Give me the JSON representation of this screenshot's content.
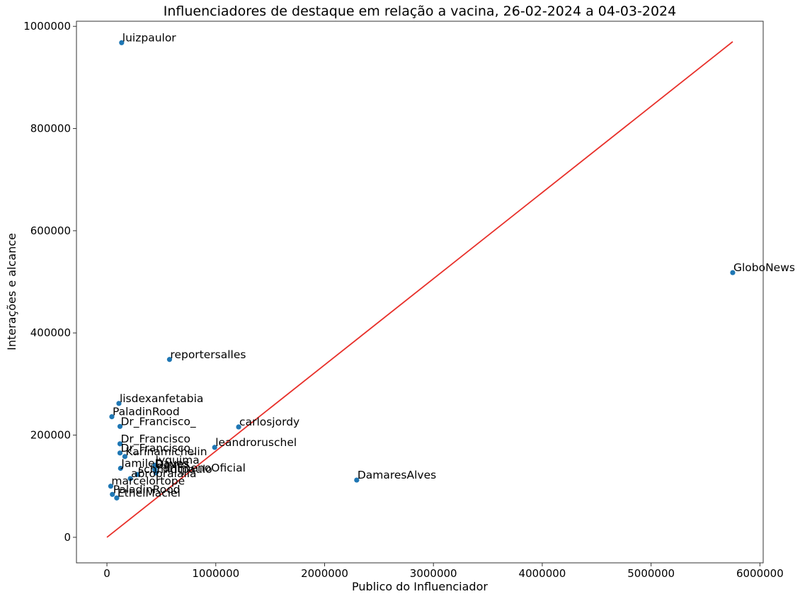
{
  "chart_data": {
    "type": "scatter",
    "title": "Influenciadores de destaque em relação a vacina, 26-02-2024 a 04-03-2024",
    "xlabel": "Publico do Influenciador",
    "ylabel": "Interações e alcance",
    "xlim": [
      -280000,
      6030000
    ],
    "ylim": [
      -50000,
      1010000
    ],
    "xticks": [
      0,
      1000000,
      2000000,
      3000000,
      4000000,
      5000000,
      6000000
    ],
    "yticks": [
      0,
      200000,
      400000,
      600000,
      800000,
      1000000
    ],
    "xtick_labels": [
      "0",
      "1000000",
      "2000000",
      "3000000",
      "4000000",
      "5000000",
      "6000000"
    ],
    "ytick_labels": [
      "0",
      "200000",
      "400000",
      "600000",
      "800000",
      "1000000"
    ],
    "grid": false,
    "point_color": "#1f77b4",
    "trend_color": "#e8302a",
    "trend_line": {
      "x": [
        0,
        5750000
      ],
      "y": [
        0,
        970000
      ]
    },
    "points": [
      {
        "label": "luizpaulor",
        "x": 135000,
        "y": 968000
      },
      {
        "label": "GloboNews",
        "x": 5750000,
        "y": 518000
      },
      {
        "label": "reportersalles",
        "x": 575000,
        "y": 348000
      },
      {
        "label": "lisdexanfetabia",
        "x": 110000,
        "y": 262000
      },
      {
        "label": "PaladinRood",
        "x": 45000,
        "y": 236000
      },
      {
        "label": "Dr_Francisco_",
        "x": 120000,
        "y": 217000
      },
      {
        "label": "carlosjordy",
        "x": 1210000,
        "y": 216000
      },
      {
        "label": "Dr_Francisco",
        "x": 120000,
        "y": 183000
      },
      {
        "label": "leandroruschel",
        "x": 990000,
        "y": 176000
      },
      {
        "label": "Dr_Francisco_",
        "x": 120000,
        "y": 165000
      },
      {
        "label": "Karinamichelin",
        "x": 165000,
        "y": 158000
      },
      {
        "label": "lyquima",
        "x": 440000,
        "y": 141000
      },
      {
        "label": "JamileDaves",
        "x": 125000,
        "y": 135000
      },
      {
        "label": "Daves",
        "x": 440000,
        "y": 133000
      },
      {
        "label": "schmidtpaulo",
        "x": 280000,
        "y": 123000
      },
      {
        "label": "ParlimenoOficial",
        "x": 450000,
        "y": 126000
      },
      {
        "label": "abropraialla",
        "x": 215000,
        "y": 115000
      },
      {
        "label": "DamaresAlves",
        "x": 2295000,
        "y": 112000
      },
      {
        "label": "marcelortope",
        "x": 35000,
        "y": 100000
      },
      {
        "label": "PaladinRood",
        "x": 50000,
        "y": 84000
      },
      {
        "label": "EthelMaciel",
        "x": 90000,
        "y": 77000
      }
    ]
  }
}
